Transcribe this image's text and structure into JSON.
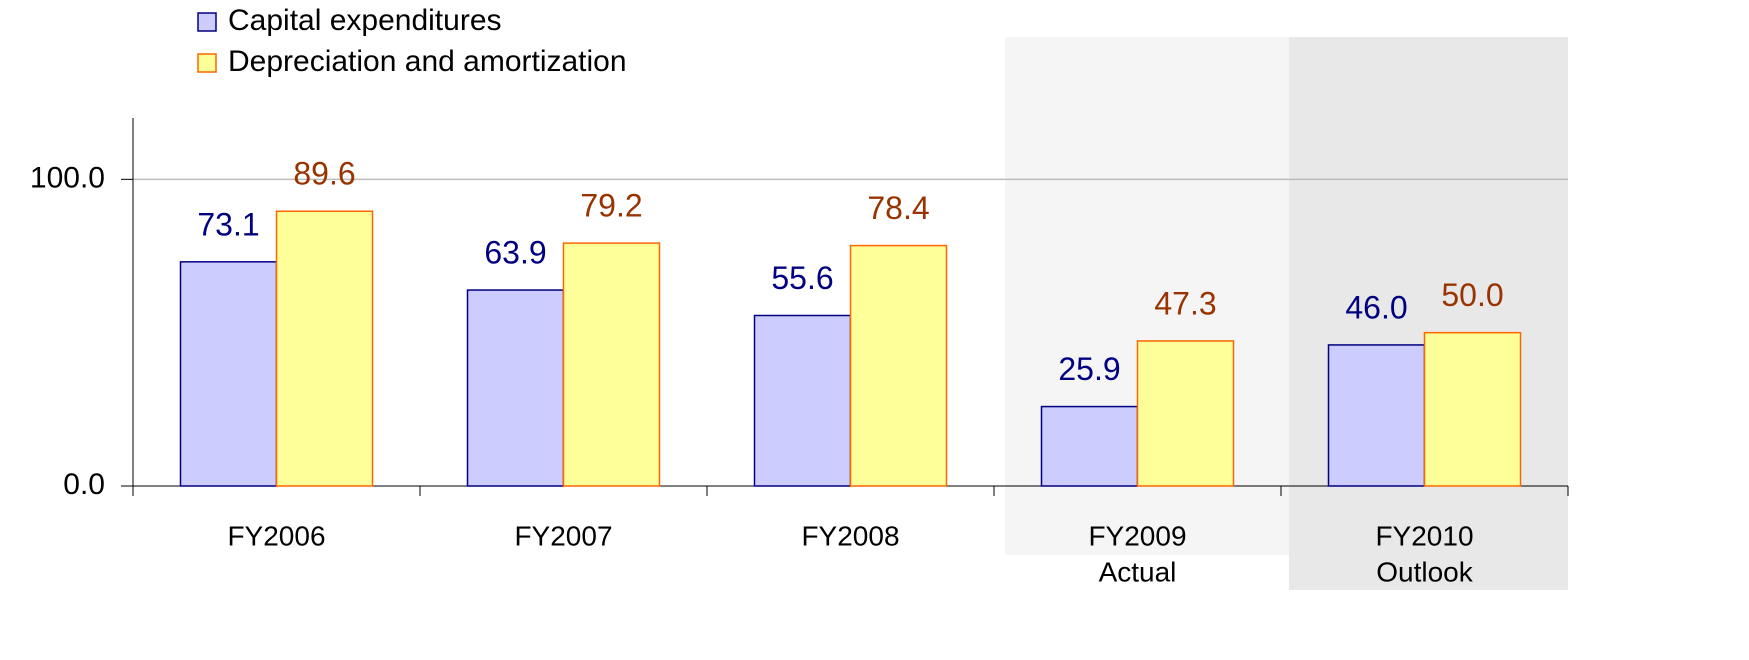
{
  "chart_data": {
    "type": "bar",
    "categories": [
      "FY2006",
      "FY2007",
      "FY2008",
      "FY2009",
      "FY2010"
    ],
    "sublabels": [
      null,
      null,
      null,
      "Actual",
      "Outlook"
    ],
    "series": [
      {
        "name": "Capital expenditures",
        "color": "#ccccff",
        "edge": "#000080",
        "label_color": "#000080",
        "values": [
          73.1,
          63.9,
          55.6,
          25.9,
          46.0
        ],
        "value_labels": [
          "73.1",
          "63.9",
          "55.6",
          "25.9",
          "46.0"
        ]
      },
      {
        "name": "Depreciation and amortization",
        "color": "#ffff99",
        "edge": "#ff6600",
        "label_color": "#993300",
        "values": [
          89.6,
          79.2,
          78.4,
          47.3,
          50.0
        ],
        "value_labels": [
          "89.6",
          "79.2",
          "78.4",
          "47.3",
          "50.0"
        ]
      }
    ],
    "ylim": [
      0,
      120
    ],
    "yticks": [
      {
        "value": 0,
        "label": "0.0"
      },
      {
        "value": 100,
        "label": "100.0"
      }
    ],
    "grid": true
  }
}
